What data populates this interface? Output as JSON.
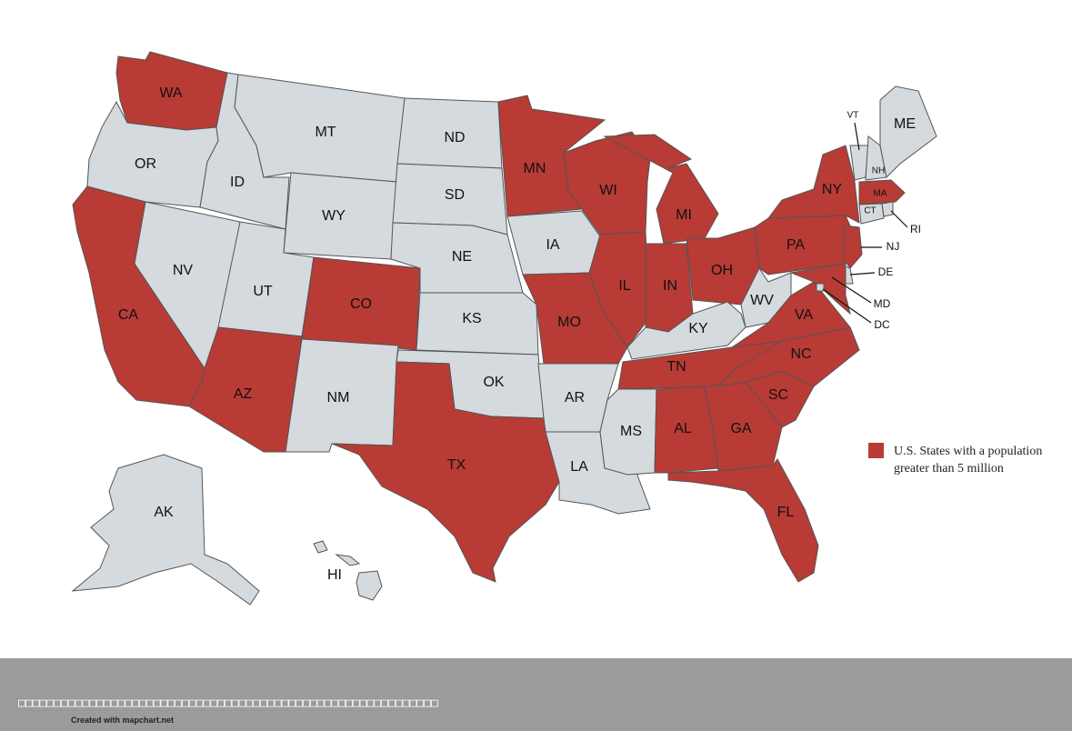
{
  "colors": {
    "highlight": "#b83b36",
    "base": "#d4dadd",
    "border": "#555555",
    "footer": "#9b9b9b"
  },
  "states": {
    "WA": {
      "label": "WA",
      "highlighted": true
    },
    "OR": {
      "label": "OR",
      "highlighted": false
    },
    "CA": {
      "label": "CA",
      "highlighted": true
    },
    "ID": {
      "label": "ID",
      "highlighted": false
    },
    "NV": {
      "label": "NV",
      "highlighted": false
    },
    "MT": {
      "label": "MT",
      "highlighted": false
    },
    "WY": {
      "label": "WY",
      "highlighted": false
    },
    "UT": {
      "label": "UT",
      "highlighted": false
    },
    "AZ": {
      "label": "AZ",
      "highlighted": true
    },
    "CO": {
      "label": "CO",
      "highlighted": true
    },
    "NM": {
      "label": "NM",
      "highlighted": false
    },
    "ND": {
      "label": "ND",
      "highlighted": false
    },
    "SD": {
      "label": "SD",
      "highlighted": false
    },
    "NE": {
      "label": "NE",
      "highlighted": false
    },
    "KS": {
      "label": "KS",
      "highlighted": false
    },
    "OK": {
      "label": "OK",
      "highlighted": false
    },
    "TX": {
      "label": "TX",
      "highlighted": true
    },
    "MN": {
      "label": "MN",
      "highlighted": true
    },
    "IA": {
      "label": "IA",
      "highlighted": false
    },
    "MO": {
      "label": "MO",
      "highlighted": true
    },
    "AR": {
      "label": "AR",
      "highlighted": false
    },
    "LA": {
      "label": "LA",
      "highlighted": false
    },
    "WI": {
      "label": "WI",
      "highlighted": true
    },
    "IL": {
      "label": "IL",
      "highlighted": true
    },
    "MI": {
      "label": "MI",
      "highlighted": true
    },
    "IN": {
      "label": "IN",
      "highlighted": true
    },
    "OH": {
      "label": "OH",
      "highlighted": true
    },
    "KY": {
      "label": "KY",
      "highlighted": false
    },
    "TN": {
      "label": "TN",
      "highlighted": true
    },
    "MS": {
      "label": "MS",
      "highlighted": false
    },
    "AL": {
      "label": "AL",
      "highlighted": true
    },
    "GA": {
      "label": "GA",
      "highlighted": true
    },
    "FL": {
      "label": "FL",
      "highlighted": true
    },
    "SC": {
      "label": "SC",
      "highlighted": true
    },
    "NC": {
      "label": "NC",
      "highlighted": true
    },
    "VA": {
      "label": "VA",
      "highlighted": true
    },
    "WV": {
      "label": "WV",
      "highlighted": false
    },
    "PA": {
      "label": "PA",
      "highlighted": true
    },
    "NY": {
      "label": "NY",
      "highlighted": true
    },
    "NJ": {
      "label": "NJ",
      "highlighted": true
    },
    "DE": {
      "label": "DE",
      "highlighted": false
    },
    "MD": {
      "label": "MD",
      "highlighted": true
    },
    "DC": {
      "label": "DC",
      "highlighted": false
    },
    "VT": {
      "label": "VT",
      "highlighted": false
    },
    "NH": {
      "label": "NH",
      "highlighted": false
    },
    "ME": {
      "label": "ME",
      "highlighted": false
    },
    "MA": {
      "label": "MA",
      "highlighted": true
    },
    "CT": {
      "label": "CT",
      "highlighted": false
    },
    "RI": {
      "label": "RI",
      "highlighted": false
    },
    "AK": {
      "label": "AK",
      "highlighted": false
    },
    "HI": {
      "label": "HI",
      "highlighted": false
    }
  },
  "legend": {
    "text": "U.S. States with a population greater than 5 million"
  },
  "footer": {
    "boxes": "□□□□□□□□□□□□□□□□□□□□□□□□□□□□□□□□□□□□□□□□□□□□□□□□□□□□□□□□□□□",
    "credit": "Created with mapchart.net"
  }
}
